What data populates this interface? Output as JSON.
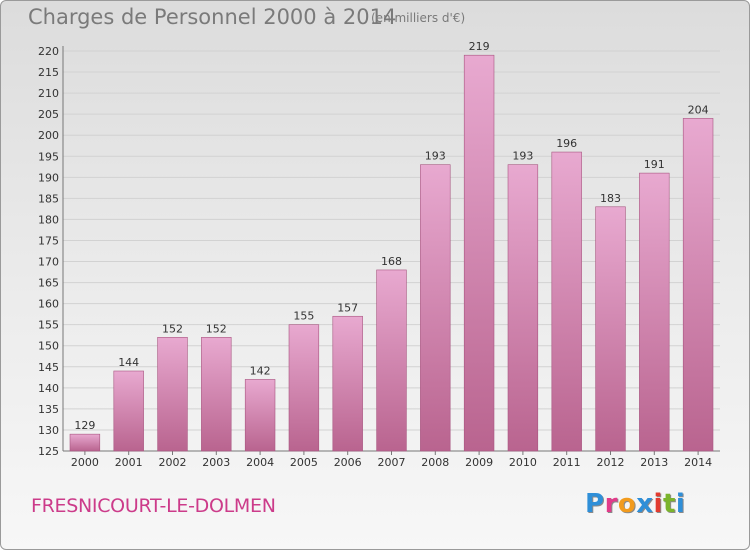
{
  "header": {
    "title": "Charges de Personnel 2000 à 2014",
    "subtitle": "(en milliers d'€)"
  },
  "footer": {
    "commune": "FRESNICOURT-LE-DOLMEN",
    "logo_letters": [
      "P",
      "r",
      "o",
      "x",
      "i",
      "t",
      "i"
    ],
    "logo_colors": [
      "#2f8fd8",
      "#e23b8a",
      "#f29b1d",
      "#2f8fd8",
      "#e23b2f",
      "#7bb42c",
      "#2f8fd8"
    ]
  },
  "colors": {
    "bar_light": "#e8a9d0",
    "bar_dark": "#b9648f",
    "grid": "#d2d2d2",
    "axis": "#777777"
  },
  "chart_data": {
    "type": "bar",
    "title": "Charges de Personnel 2000 à 2014",
    "subtitle": "(en milliers d'€)",
    "categories": [
      "2000",
      "2001",
      "2002",
      "2003",
      "2004",
      "2005",
      "2006",
      "2007",
      "2008",
      "2009",
      "2010",
      "2011",
      "2012",
      "2013",
      "2014"
    ],
    "values": [
      129,
      144,
      152,
      152,
      142,
      155,
      157,
      168,
      193,
      219,
      193,
      196,
      183,
      191,
      204
    ],
    "ylim": [
      125,
      220
    ],
    "yticks": [
      125,
      130,
      135,
      140,
      145,
      150,
      155,
      160,
      165,
      170,
      175,
      180,
      185,
      190,
      195,
      200,
      205,
      210,
      215,
      220
    ],
    "xlabel": "",
    "ylabel": "",
    "grid": true,
    "data_labels": true
  }
}
